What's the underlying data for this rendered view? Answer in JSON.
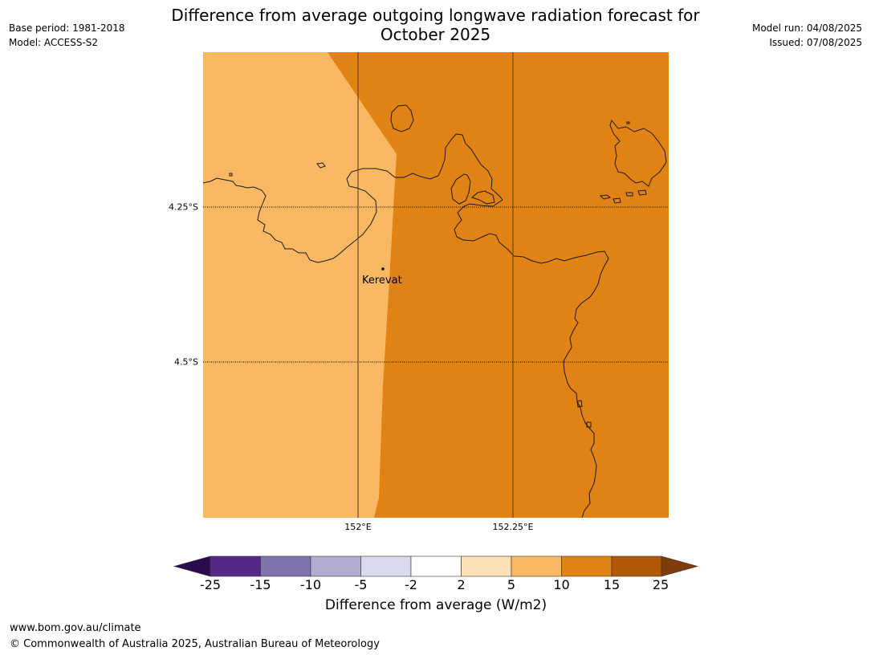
{
  "title_line1": "Difference from average outgoing longwave radiation forecast for",
  "title_line2": "October 2025",
  "meta_left": [
    "Base period: 1981-2018",
    "Model: ACCESS-S2"
  ],
  "meta_right": [
    "Model run: 04/08/2025",
    "Issued: 07/08/2025"
  ],
  "latitudes": [
    {
      "label": "4.25°S"
    },
    {
      "label": "4.5°S"
    }
  ],
  "longitudes": [
    {
      "label": "152°E"
    },
    {
      "label": "152.25°E"
    }
  ],
  "place": {
    "name": "Kerevat"
  },
  "colorbar": {
    "title": "Difference from average (W/m2)",
    "ticks": [
      "-25",
      "-15",
      "-10",
      "-5",
      "-2",
      "2",
      "5",
      "10",
      "15",
      "25"
    ],
    "colors": [
      "#2d0a4e",
      "#542788",
      "#8073ac",
      "#b2abd2",
      "#d8daeb",
      "#ffffff",
      "#fee0b6",
      "#fdb863",
      "#e08214",
      "#b35806",
      "#7f3b08"
    ]
  },
  "colors": {
    "low_anomaly": "#fab862",
    "high_anomaly": "#e08214",
    "coast": "#1a1a1a"
  },
  "footer_url": "www.bom.gov.au/climate",
  "footer_copy": "© Commonwealth of Australia 2025, Australian Bureau of Meteorology"
}
